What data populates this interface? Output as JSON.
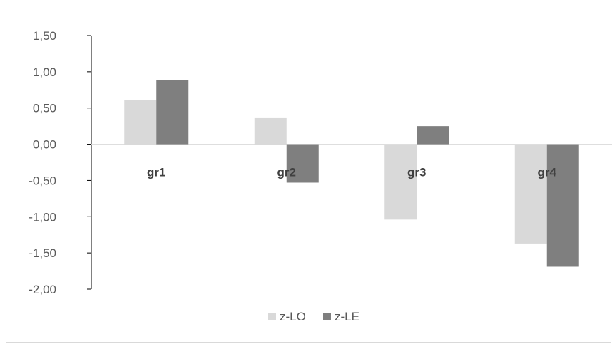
{
  "colors": {
    "z_lo": "#d9d9d9",
    "z_le": "#7f7f7f",
    "axis": "#000000",
    "text": "#595959"
  },
  "chart_data": {
    "type": "bar",
    "categories": [
      "gr1",
      "gr2",
      "gr3",
      "gr4"
    ],
    "series": [
      {
        "name": "z-LO",
        "values": [
          0.61,
          0.37,
          -1.04,
          -1.37
        ]
      },
      {
        "name": "z-LE",
        "values": [
          0.89,
          -0.53,
          0.25,
          -1.69
        ]
      }
    ],
    "ylim": [
      -2.0,
      1.5
    ],
    "yticks": [
      "1,50",
      "1,00",
      "0,50",
      "0,00",
      "-0,50",
      "-1,00",
      "-1,50",
      "-2,00"
    ],
    "ytick_values": [
      1.5,
      1.0,
      0.5,
      0.0,
      -0.5,
      -1.0,
      -1.5,
      -2.0
    ],
    "legend_position": "bottom",
    "grid": false
  }
}
